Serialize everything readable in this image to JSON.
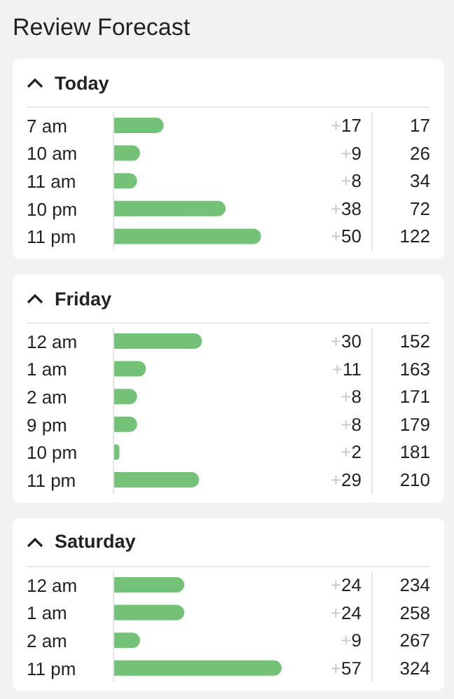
{
  "chart_data": [
    {
      "type": "bar",
      "orientation": "horizontal",
      "title": "Review Forecast",
      "subtitle": "Today",
      "categories": [
        "7 am",
        "10 am",
        "11 am",
        "10 pm",
        "11 pm"
      ],
      "values": [
        17,
        9,
        8,
        38,
        50
      ],
      "value_labels": [
        "+17",
        "+9",
        "+8",
        "+38",
        "+50"
      ],
      "color": "#74c178",
      "tick_labels": "y",
      "grid": false,
      "legend": false,
      "annotations": [
        "17",
        "26",
        "34",
        "72",
        "122"
      ]
    },
    {
      "type": "bar",
      "orientation": "horizontal",
      "title": "Friday",
      "categories": [
        "12 am",
        "1 am",
        "2 am",
        "9 pm",
        "10 pm",
        "11 pm"
      ],
      "values": [
        30,
        11,
        8,
        8,
        2,
        29
      ],
      "value_labels": [
        "+30",
        "+11",
        "+8",
        "+8",
        "+2",
        "+29"
      ],
      "color": "#74c178",
      "tick_labels": "y",
      "grid": false,
      "legend": false,
      "annotations": [
        "152",
        "163",
        "171",
        "179",
        "181",
        "210"
      ]
    },
    {
      "type": "bar",
      "orientation": "horizontal",
      "title": "Saturday",
      "categories": [
        "12 am",
        "1 am",
        "2 am",
        "11 pm"
      ],
      "values": [
        24,
        24,
        9,
        57
      ],
      "value_labels": [
        "+24",
        "+24",
        "+9",
        "+57"
      ],
      "color": "#74c178",
      "tick_labels": "y",
      "grid": false,
      "legend": false,
      "annotations": [
        "234",
        "258",
        "267",
        "324"
      ]
    }
  ]
}
